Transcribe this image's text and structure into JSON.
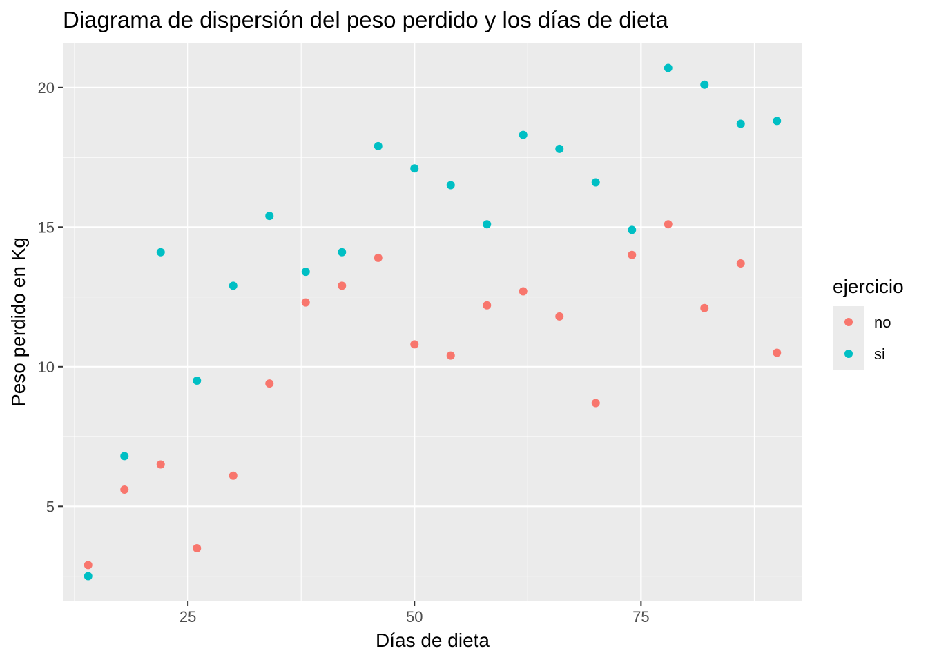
{
  "chart_data": {
    "type": "scatter",
    "title": "Diagrama de dispersión del peso perdido y los días de dieta",
    "xlabel": "Días de dieta",
    "ylabel": "Peso perdido en Kg",
    "xlim": [
      11.2,
      92.8
    ],
    "ylim": [
      1.6,
      21.6
    ],
    "x_ticks": [
      25,
      50,
      75
    ],
    "x_tick_labels": [
      "25",
      "50",
      "75"
    ],
    "y_ticks": [
      5,
      10,
      15,
      20
    ],
    "y_tick_labels": [
      "5",
      "10",
      "15",
      "20"
    ],
    "grid": true,
    "legend": {
      "title": "ejercicio",
      "position": "right",
      "entries": [
        {
          "label": "no",
          "color": "#F8766D"
        },
        {
          "label": "si",
          "color": "#00BFC4"
        }
      ]
    },
    "series": [
      {
        "name": "no",
        "color": "#F8766D",
        "points": [
          {
            "x": 14,
            "y": 2.9
          },
          {
            "x": 18,
            "y": 5.6
          },
          {
            "x": 22,
            "y": 6.5
          },
          {
            "x": 26,
            "y": 3.5
          },
          {
            "x": 30,
            "y": 6.1
          },
          {
            "x": 34,
            "y": 9.4
          },
          {
            "x": 38,
            "y": 12.3
          },
          {
            "x": 42,
            "y": 12.9
          },
          {
            "x": 46,
            "y": 13.9
          },
          {
            "x": 50,
            "y": 10.8
          },
          {
            "x": 54,
            "y": 10.4
          },
          {
            "x": 58,
            "y": 12.2
          },
          {
            "x": 62,
            "y": 12.7
          },
          {
            "x": 66,
            "y": 11.8
          },
          {
            "x": 70,
            "y": 8.7
          },
          {
            "x": 74,
            "y": 14.0
          },
          {
            "x": 78,
            "y": 15.1
          },
          {
            "x": 82,
            "y": 12.1
          },
          {
            "x": 86,
            "y": 13.7
          },
          {
            "x": 90,
            "y": 10.5
          }
        ]
      },
      {
        "name": "si",
        "color": "#00BFC4",
        "points": [
          {
            "x": 14,
            "y": 2.5
          },
          {
            "x": 18,
            "y": 6.8
          },
          {
            "x": 22,
            "y": 14.1
          },
          {
            "x": 26,
            "y": 9.5
          },
          {
            "x": 30,
            "y": 12.9
          },
          {
            "x": 34,
            "y": 15.4
          },
          {
            "x": 38,
            "y": 13.4
          },
          {
            "x": 42,
            "y": 14.1
          },
          {
            "x": 46,
            "y": 17.9
          },
          {
            "x": 50,
            "y": 17.1
          },
          {
            "x": 54,
            "y": 16.5
          },
          {
            "x": 58,
            "y": 15.1
          },
          {
            "x": 62,
            "y": 18.3
          },
          {
            "x": 66,
            "y": 17.8
          },
          {
            "x": 70,
            "y": 16.6
          },
          {
            "x": 74,
            "y": 14.9
          },
          {
            "x": 78,
            "y": 20.7
          },
          {
            "x": 82,
            "y": 20.1
          },
          {
            "x": 86,
            "y": 18.7
          },
          {
            "x": 90,
            "y": 18.8
          }
        ]
      }
    ]
  },
  "colors": {
    "panel_background": "#EBEBEB",
    "grid_major": "#FFFFFF",
    "tick_mark": "#333333"
  }
}
